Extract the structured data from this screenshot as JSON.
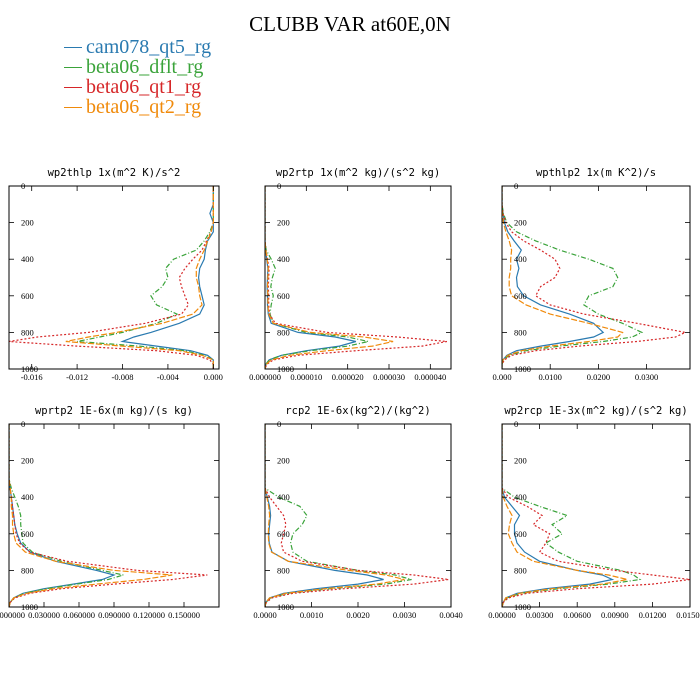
{
  "title": "CLUBB VAR at60E,0N",
  "series": [
    {
      "name": "cam078_qt5_rg",
      "color": "#2a7ab0",
      "dash": ""
    },
    {
      "name": "beta06_dflt_rg",
      "color": "#3aa33a",
      "dash": "5,2,1,2"
    },
    {
      "name": "beta06_qt1_rg",
      "color": "#d62728",
      "dash": "2,2"
    },
    {
      "name": "beta06_qt2_rg",
      "color": "#f08a0b",
      "dash": "6,2"
    }
  ],
  "chart_data": [
    {
      "type": "line",
      "title": "wp2thlp  1x(m^2 K)/s^2",
      "xlim": [
        -0.018,
        0.0005
      ],
      "ylim": [
        1000,
        0
      ],
      "yticks": [
        0,
        200,
        400,
        600,
        800,
        1000
      ],
      "xticks": [
        -0.016,
        -0.012,
        -0.008,
        -0.004,
        0.0
      ],
      "xticklabels": [
        "-0.016",
        "-0.012",
        "-0.008",
        "-0.004",
        "0.000"
      ],
      "y": [
        0,
        100,
        150,
        200,
        250,
        300,
        350,
        400,
        450,
        500,
        550,
        600,
        650,
        700,
        750,
        800,
        825,
        850,
        875,
        900,
        925,
        950,
        975,
        1000
      ],
      "series": [
        {
          "name": "cam078_qt5_rg",
          "values": [
            0,
            0,
            -0.0003,
            0,
            0,
            -0.0005,
            -0.0007,
            -0.0008,
            -0.0012,
            -0.0013,
            -0.0012,
            -0.001,
            -0.0008,
            -0.0012,
            -0.003,
            -0.0055,
            -0.007,
            -0.008,
            -0.005,
            -0.002,
            -0.0005,
            0,
            0,
            0
          ]
        },
        {
          "name": "beta06_dflt_rg",
          "values": [
            0,
            0,
            0,
            0,
            -0.0003,
            -0.0008,
            -0.0015,
            -0.0035,
            -0.0042,
            -0.004,
            -0.0045,
            -0.0055,
            -0.005,
            -0.0032,
            -0.005,
            -0.008,
            -0.01,
            -0.012,
            -0.0065,
            -0.0025,
            -0.0008,
            0,
            0,
            0
          ]
        },
        {
          "name": "beta06_qt1_rg",
          "values": [
            0,
            0,
            0,
            0,
            -0.0002,
            -0.0006,
            -0.001,
            -0.0018,
            -0.0025,
            -0.003,
            -0.0028,
            -0.0025,
            -0.0022,
            -0.0028,
            -0.006,
            -0.011,
            -0.0155,
            -0.018,
            -0.012,
            -0.005,
            -0.0015,
            -0.0003,
            0,
            0
          ]
        },
        {
          "name": "beta06_qt2_rg",
          "values": [
            0,
            0,
            0,
            0,
            -0.0002,
            -0.0005,
            -0.0008,
            -0.0012,
            -0.0015,
            -0.0015,
            -0.0013,
            -0.0012,
            -0.001,
            -0.0018,
            -0.0045,
            -0.0085,
            -0.011,
            -0.013,
            -0.008,
            -0.003,
            -0.001,
            0,
            0,
            0
          ]
        }
      ]
    },
    {
      "type": "line",
      "title": "wp2rtp  1x(m^2 kg)/(s^2 kg)",
      "xlim": [
        0,
        4.5e-05
      ],
      "ylim": [
        1000,
        0
      ],
      "yticks": [
        0,
        200,
        400,
        600,
        800,
        1000
      ],
      "xticks": [
        0,
        1e-05,
        2e-05,
        3e-05,
        4e-05
      ],
      "xticklabels": [
        "0.000000",
        "0.000010",
        "0.000020",
        "0.000030",
        "0.000040"
      ],
      "y": [
        0,
        300,
        350,
        400,
        450,
        500,
        550,
        600,
        650,
        700,
        750,
        800,
        825,
        850,
        875,
        900,
        925,
        950,
        975,
        1000
      ],
      "series": [
        {
          "name": "cam078_qt5_rg",
          "values": [
            0,
            0,
            2e-07,
            4e-07,
            7e-07,
            6e-07,
            5e-07,
            6e-07,
            6e-07,
            8e-07,
            1.5e-06,
            8e-06,
            1.7e-05,
            2.2e-05,
            1.8e-05,
            1e-05,
            4e-06,
            1e-06,
            2e-07,
            0
          ]
        },
        {
          "name": "beta06_dflt_rg",
          "values": [
            0,
            0,
            3e-07,
            1.5e-06,
            2.5e-06,
            1.8e-06,
            1.4e-06,
            2e-06,
            1.5e-06,
            1.2e-06,
            2e-06,
            1e-05,
            2e-05,
            2.5e-05,
            2e-05,
            1.1e-05,
            4e-06,
            1e-06,
            2e-07,
            0
          ]
        },
        {
          "name": "beta06_qt1_rg",
          "values": [
            0,
            0,
            2e-07,
            6e-07,
            1e-06,
            9e-07,
            8e-07,
            9e-07,
            9e-07,
            1.1e-06,
            2.5e-06,
            1.5e-05,
            3.2e-05,
            4.4e-05,
            3.8e-05,
            2.2e-05,
            8e-06,
            2e-06,
            4e-07,
            0
          ]
        },
        {
          "name": "beta06_qt2_rg",
          "values": [
            0,
            0,
            2e-07,
            5e-07,
            8e-07,
            7e-07,
            6e-07,
            7e-07,
            7e-07,
            9e-07,
            2e-06,
            1.1e-05,
            2.4e-05,
            3.1e-05,
            2.6e-05,
            1.5e-05,
            6e-06,
            1.5e-06,
            3e-07,
            0
          ]
        }
      ]
    },
    {
      "type": "line",
      "title": "wpthlp2  1x(m K^2)/s",
      "xlim": [
        0,
        0.039
      ],
      "ylim": [
        1000,
        0
      ],
      "yticks": [
        0,
        200,
        400,
        600,
        800,
        1000
      ],
      "xticks": [
        0,
        0.01,
        0.02,
        0.03
      ],
      "xticklabels": [
        "0.000",
        "0.0100",
        "0.0200",
        "0.0300"
      ],
      "y": [
        0,
        100,
        150,
        200,
        250,
        300,
        350,
        400,
        450,
        500,
        550,
        600,
        650,
        700,
        750,
        800,
        825,
        850,
        875,
        900,
        925,
        950,
        975,
        1000
      ],
      "series": [
        {
          "name": "cam078_qt5_rg",
          "values": [
            0,
            0,
            0.0002,
            0.0005,
            0.0012,
            0.0025,
            0.004,
            0.003,
            0.0035,
            0.003,
            0.0032,
            0.0045,
            0.008,
            0.014,
            0.019,
            0.021,
            0.019,
            0.014,
            0.008,
            0.003,
            0.001,
            0.0002,
            0,
            0
          ]
        },
        {
          "name": "beta06_dflt_rg",
          "values": [
            0,
            0,
            0.0003,
            0.001,
            0.003,
            0.007,
            0.012,
            0.018,
            0.023,
            0.024,
            0.023,
            0.018,
            0.017,
            0.02,
            0.025,
            0.029,
            0.027,
            0.021,
            0.012,
            0.005,
            0.0015,
            0.0003,
            0,
            0
          ]
        },
        {
          "name": "beta06_qt1_rg",
          "values": [
            0,
            0,
            0.0002,
            0.0008,
            0.002,
            0.0045,
            0.008,
            0.011,
            0.012,
            0.011,
            0.008,
            0.007,
            0.01,
            0.017,
            0.028,
            0.038,
            0.036,
            0.028,
            0.016,
            0.007,
            0.002,
            0.0005,
            0,
            0
          ]
        },
        {
          "name": "beta06_qt2_rg",
          "values": [
            0,
            0,
            0.0001,
            0.0003,
            0.0008,
            0.0015,
            0.002,
            0.0018,
            0.0018,
            0.0015,
            0.0015,
            0.002,
            0.005,
            0.01,
            0.018,
            0.025,
            0.024,
            0.018,
            0.01,
            0.004,
            0.0012,
            0.0002,
            0,
            0
          ]
        }
      ]
    },
    {
      "type": "line",
      "title": "wprtp2  1E-6x(m kg)/(s kg)",
      "xlim": [
        0,
        0.18
      ],
      "ylim": [
        1000,
        0
      ],
      "yticks": [
        0,
        200,
        400,
        600,
        800,
        1000
      ],
      "xticks": [
        0,
        0.03,
        0.06,
        0.09,
        0.12,
        0.15
      ],
      "xticklabels": [
        "0.000000",
        "0.030000",
        "0.060000",
        "0.090000",
        "0.120000",
        "0.150000"
      ],
      "y": [
        0,
        300,
        350,
        400,
        450,
        500,
        550,
        600,
        650,
        700,
        750,
        800,
        825,
        850,
        875,
        900,
        925,
        950,
        975,
        1000
      ],
      "series": [
        {
          "name": "cam078_qt5_rg",
          "values": [
            0,
            0,
            0.001,
            0.002,
            0.003,
            0.004,
            0.005,
            0.007,
            0.01,
            0.018,
            0.04,
            0.075,
            0.09,
            0.08,
            0.055,
            0.03,
            0.012,
            0.004,
            0.001,
            0
          ]
        },
        {
          "name": "beta06_dflt_rg",
          "values": [
            0,
            0,
            0.002,
            0.005,
            0.008,
            0.01,
            0.01,
            0.011,
            0.012,
            0.02,
            0.045,
            0.08,
            0.098,
            0.085,
            0.058,
            0.032,
            0.013,
            0.004,
            0.001,
            0
          ]
        },
        {
          "name": "beta06_qt1_rg",
          "values": [
            0,
            0,
            0.001,
            0.002,
            0.003,
            0.004,
            0.005,
            0.006,
            0.009,
            0.018,
            0.05,
            0.11,
            0.17,
            0.14,
            0.09,
            0.045,
            0.018,
            0.005,
            0.001,
            0
          ]
        },
        {
          "name": "beta06_qt2_rg",
          "values": [
            0,
            0,
            0.001,
            0.002,
            0.002,
            0.003,
            0.003,
            0.004,
            0.006,
            0.014,
            0.04,
            0.09,
            0.14,
            0.115,
            0.075,
            0.038,
            0.015,
            0.004,
            0.001,
            0
          ]
        }
      ]
    },
    {
      "type": "line",
      "title": "rcp2  1E-6x(kg^2)/(kg^2)",
      "xlim": [
        0,
        0.004
      ],
      "ylim": [
        1000,
        0
      ],
      "yticks": [
        0,
        200,
        400,
        600,
        800,
        1000
      ],
      "xticks": [
        0,
        0.001,
        0.002,
        0.003,
        0.004
      ],
      "xticklabels": [
        "0.0000",
        "0.0010",
        "0.0020",
        "0.0030",
        "0.0040"
      ],
      "y": [
        0,
        350,
        400,
        450,
        500,
        550,
        600,
        650,
        700,
        750,
        800,
        825,
        850,
        875,
        900,
        925,
        950,
        975,
        1000
      ],
      "series": [
        {
          "name": "cam078_qt5_rg",
          "values": [
            0,
            0,
            5e-05,
            0.0001,
            0.00012,
            0.0001,
            8e-05,
            9e-05,
            0.00015,
            0.0005,
            0.0015,
            0.0022,
            0.00255,
            0.002,
            0.0011,
            0.0004,
            0.0001,
            2e-05,
            0
          ]
        },
        {
          "name": "beta06_dflt_rg",
          "values": [
            0,
            0,
            0.0003,
            0.00075,
            0.0009,
            0.0008,
            0.0006,
            0.00055,
            0.0006,
            0.0009,
            0.002,
            0.0028,
            0.00315,
            0.0026,
            0.0014,
            0.0005,
            0.00012,
            2e-05,
            0
          ]
        },
        {
          "name": "beta06_qt1_rg",
          "values": [
            0,
            0,
            0.0001,
            0.00025,
            0.0004,
            0.00045,
            0.0004,
            0.00035,
            0.0004,
            0.0008,
            0.002,
            0.0032,
            0.00395,
            0.0032,
            0.0017,
            0.0006,
            0.00015,
            3e-05,
            0
          ]
        },
        {
          "name": "beta06_qt2_rg",
          "values": [
            0,
            0,
            4e-05,
            8e-05,
            0.0001,
            8e-05,
            7e-05,
            8e-05,
            0.00014,
            0.0005,
            0.0018,
            0.0026,
            0.003,
            0.0024,
            0.0013,
            0.00045,
            0.0001,
            2e-05,
            0
          ]
        }
      ]
    },
    {
      "type": "line",
      "title": "wp2rcp  1E-3x(m^2 kg)/(s^2 kg)",
      "xlim": [
        0,
        0.015
      ],
      "ylim": [
        1000,
        0
      ],
      "yticks": [
        0,
        200,
        400,
        600,
        800,
        1000
      ],
      "xticks": [
        0,
        0.003,
        0.006,
        0.009,
        0.012,
        0.015
      ],
      "xticklabels": [
        "0.00000",
        "0.00300",
        "0.00600",
        "0.00900",
        "0.01200",
        "0.01500"
      ],
      "y": [
        0,
        350,
        400,
        450,
        500,
        550,
        600,
        650,
        700,
        750,
        800,
        825,
        850,
        875,
        900,
        925,
        950,
        975,
        1000
      ],
      "series": [
        {
          "name": "cam078_qt5_rg",
          "values": [
            0,
            0,
            0.0002,
            0.0008,
            0.0014,
            0.001,
            0.001,
            0.0012,
            0.0018,
            0.003,
            0.006,
            0.008,
            0.0088,
            0.007,
            0.0035,
            0.0012,
            0.0003,
            0.0001,
            0
          ]
        },
        {
          "name": "beta06_dflt_rg",
          "values": [
            0,
            0,
            0.001,
            0.003,
            0.0052,
            0.004,
            0.0048,
            0.0035,
            0.0045,
            0.006,
            0.0095,
            0.0105,
            0.011,
            0.0085,
            0.0045,
            0.0015,
            0.0004,
            0.0001,
            0
          ]
        },
        {
          "name": "beta06_qt1_rg",
          "values": [
            0,
            0,
            0.0005,
            0.002,
            0.0032,
            0.0025,
            0.0038,
            0.0035,
            0.003,
            0.0045,
            0.009,
            0.012,
            0.015,
            0.012,
            0.006,
            0.002,
            0.0005,
            0.0001,
            0
          ]
        },
        {
          "name": "beta06_qt2_rg",
          "values": [
            0,
            0,
            0.0001,
            0.0004,
            0.0008,
            0.0006,
            0.0005,
            0.0008,
            0.0012,
            0.0025,
            0.006,
            0.0085,
            0.01,
            0.008,
            0.004,
            0.0014,
            0.0003,
            0.0001,
            0
          ]
        }
      ]
    }
  ]
}
